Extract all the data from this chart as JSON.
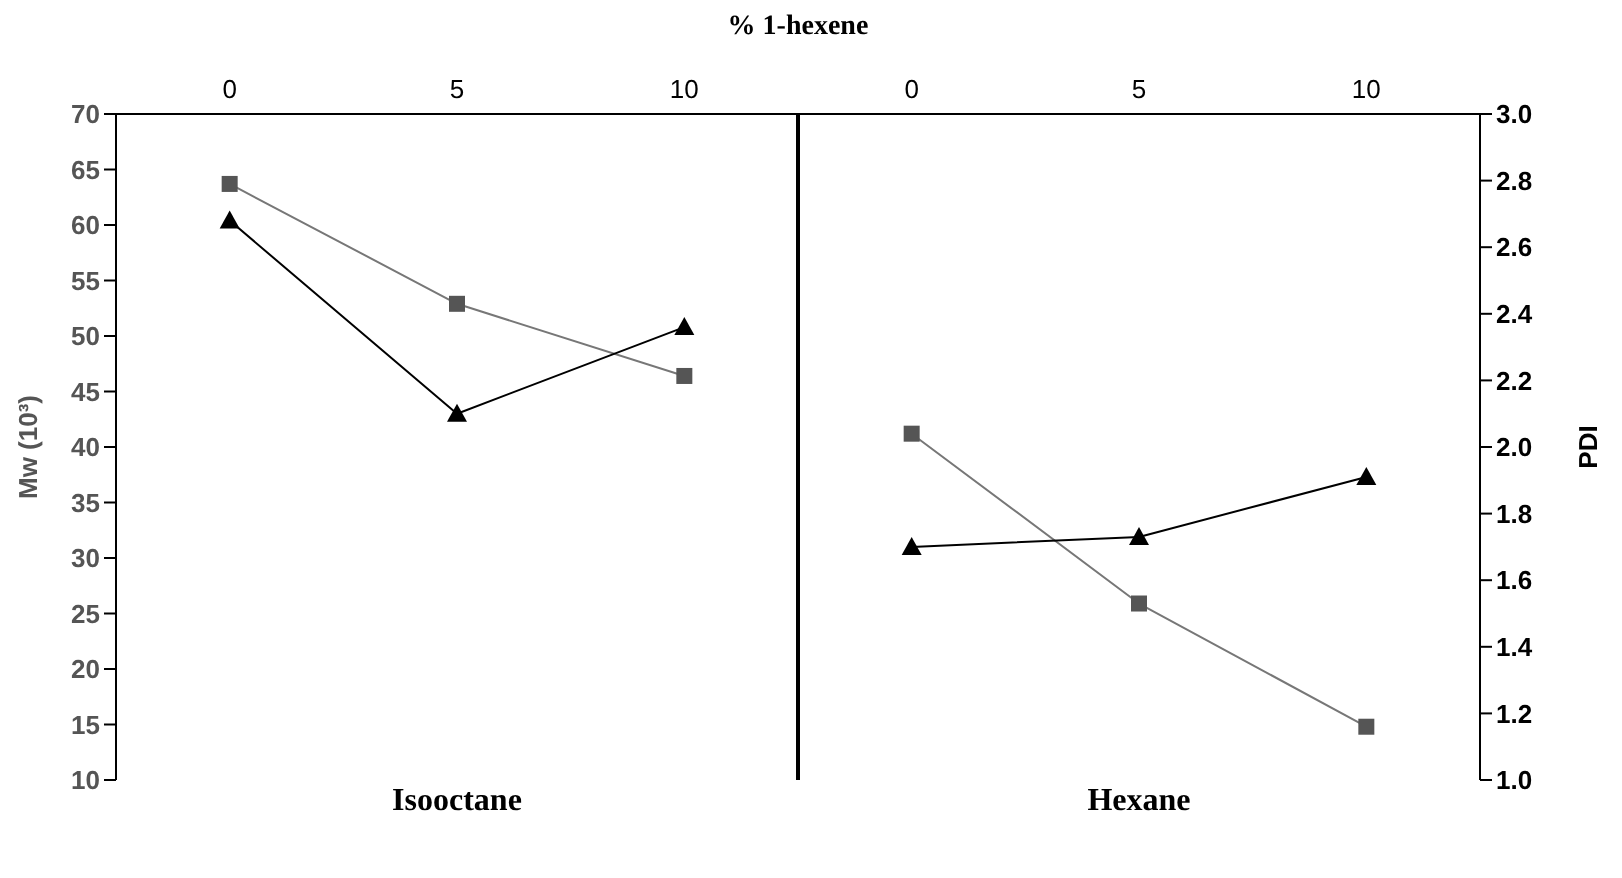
{
  "chart_data": {
    "type": "line",
    "xlabel": "% 1-hexene",
    "ylabel": "Mw (10³)",
    "y2label": "PDI",
    "annotations": [
      "Isooctane",
      "Hexane"
    ],
    "categories": [
      "0",
      "5",
      "10",
      "0",
      "5",
      "10"
    ],
    "ylim": [
      10,
      70
    ],
    "yticks": [
      10,
      15,
      20,
      25,
      30,
      35,
      40,
      45,
      50,
      55,
      60,
      65,
      70
    ],
    "y2lim": [
      1,
      3
    ],
    "y2ticks": [
      {
        "value": 1,
        "label": "1.0"
      },
      1.2,
      1.4,
      1.6,
      1.8,
      {
        "value": 2,
        "label": "2.0"
      },
      2.2,
      2.4,
      2.6,
      2.8,
      {
        "value": 3,
        "label": "3.0"
      }
    ],
    "grid": false,
    "series": [
      {
        "color": "#555555",
        "marker": "square",
        "values": [
          63.7,
          52.9,
          46.4,
          null,
          null,
          null
        ]
      },
      {
        "color": "#000000",
        "marker": "triangle",
        "axis": "y2",
        "values": [
          2.68,
          2.1,
          2.36,
          null,
          null,
          null
        ]
      },
      {
        "color": "#555555",
        "marker": "square",
        "values": [
          null,
          null,
          null,
          41.2,
          25.9,
          14.8
        ]
      },
      {
        "color": "#000000",
        "marker": "triangle",
        "axis": "y2",
        "values": [
          null,
          null,
          null,
          1.7,
          1.73,
          1.91
        ]
      }
    ]
  }
}
